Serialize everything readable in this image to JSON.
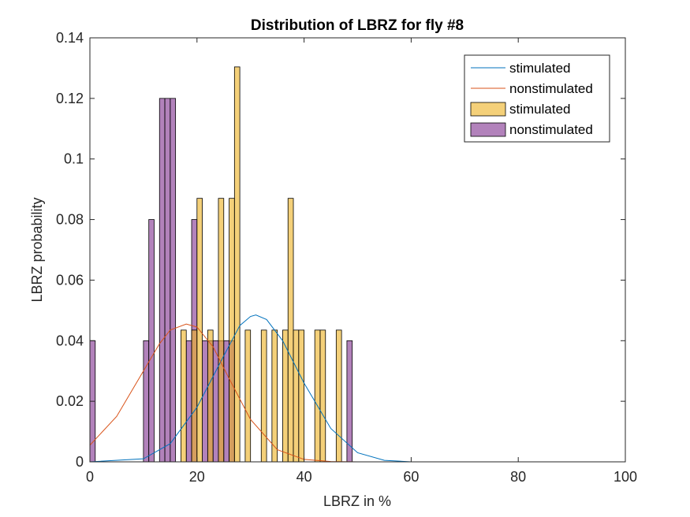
{
  "chart_data": {
    "type": "bar",
    "title": "Distribution of LBRZ for fly #8",
    "xlabel": "LBRZ in %",
    "ylabel": "LBRZ probability",
    "xlim": [
      0,
      100
    ],
    "ylim": [
      0,
      0.14
    ],
    "xticks": [
      0,
      20,
      40,
      60,
      80,
      100
    ],
    "yticks": [
      0,
      0.02,
      0.04,
      0.06,
      0.08,
      0.1,
      0.12,
      0.14
    ],
    "xtick_labels": [
      "0",
      "20",
      "40",
      "60",
      "80",
      "100"
    ],
    "ytick_labels": [
      "0",
      "0.02",
      "0.04",
      "0.06",
      "0.08",
      "0.1",
      "0.12",
      "0.14"
    ],
    "grid": false,
    "legend_position": "top-right",
    "legend": [
      "stimulated",
      "nonstimulated",
      "stimulated",
      "nonstimulated"
    ],
    "bin_width": 1,
    "histograms": [
      {
        "name": "nonstimulated",
        "color": "#7E2F8E",
        "alpha": 0.6,
        "bins": [
          {
            "x": 0,
            "y": 0.04
          },
          {
            "x": 10,
            "y": 0.04
          },
          {
            "x": 11,
            "y": 0.08
          },
          {
            "x": 13,
            "y": 0.12
          },
          {
            "x": 14,
            "y": 0.12
          },
          {
            "x": 15,
            "y": 0.12
          },
          {
            "x": 18,
            "y": 0.04
          },
          {
            "x": 19,
            "y": 0.08
          },
          {
            "x": 21,
            "y": 0.04
          },
          {
            "x": 22,
            "y": 0.04
          },
          {
            "x": 23,
            "y": 0.04
          },
          {
            "x": 24,
            "y": 0.04
          },
          {
            "x": 25,
            "y": 0.04
          },
          {
            "x": 26,
            "y": 0.04
          },
          {
            "x": 48,
            "y": 0.04
          }
        ]
      },
      {
        "name": "stimulated",
        "color": "#EDB120",
        "alpha": 0.6,
        "bins": [
          {
            "x": 17,
            "y": 0.0435
          },
          {
            "x": 19,
            "y": 0.0435
          },
          {
            "x": 20,
            "y": 0.087
          },
          {
            "x": 22,
            "y": 0.0435
          },
          {
            "x": 24,
            "y": 0.087
          },
          {
            "x": 26,
            "y": 0.087
          },
          {
            "x": 27,
            "y": 0.1304
          },
          {
            "x": 29,
            "y": 0.0435
          },
          {
            "x": 32,
            "y": 0.0435
          },
          {
            "x": 34,
            "y": 0.0435
          },
          {
            "x": 36,
            "y": 0.0435
          },
          {
            "x": 37,
            "y": 0.087
          },
          {
            "x": 38,
            "y": 0.0435
          },
          {
            "x": 39,
            "y": 0.0435
          },
          {
            "x": 42,
            "y": 0.0435
          },
          {
            "x": 43,
            "y": 0.0435
          },
          {
            "x": 46,
            "y": 0.0435
          }
        ]
      }
    ],
    "curves": [
      {
        "name": "stimulated",
        "color": "#0072BD",
        "points": [
          [
            0,
            0.0
          ],
          [
            10,
            0.001
          ],
          [
            15,
            0.006
          ],
          [
            20,
            0.018
          ],
          [
            25,
            0.035
          ],
          [
            28,
            0.045
          ],
          [
            30,
            0.048
          ],
          [
            31,
            0.0485
          ],
          [
            33,
            0.047
          ],
          [
            36,
            0.04
          ],
          [
            40,
            0.026
          ],
          [
            45,
            0.011
          ],
          [
            50,
            0.003
          ],
          [
            55,
            0.0005
          ],
          [
            60,
            0.0
          ],
          [
            100,
            0.0
          ]
        ]
      },
      {
        "name": "nonstimulated",
        "color": "#D95319",
        "points": [
          [
            0,
            0.0055
          ],
          [
            5,
            0.015
          ],
          [
            10,
            0.03
          ],
          [
            13,
            0.039
          ],
          [
            15,
            0.0435
          ],
          [
            18,
            0.0455
          ],
          [
            20,
            0.0445
          ],
          [
            23,
            0.038
          ],
          [
            26,
            0.0275
          ],
          [
            30,
            0.014
          ],
          [
            35,
            0.004
          ],
          [
            40,
            0.0008
          ],
          [
            45,
            0.0001
          ],
          [
            50,
            0.0
          ],
          [
            100,
            0.0
          ]
        ]
      }
    ]
  }
}
